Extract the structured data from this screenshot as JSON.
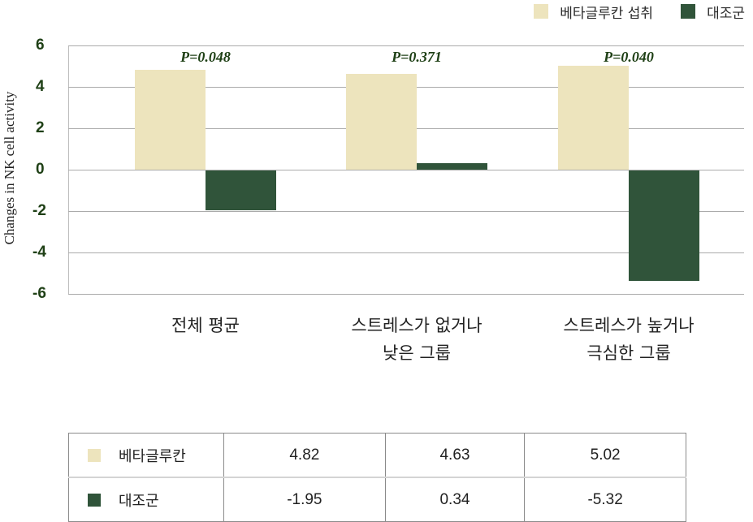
{
  "chart_data": {
    "type": "bar",
    "title": "",
    "ylabel": "Changes in NK cell activity",
    "xlabel": "",
    "ylim": [
      -6,
      6
    ],
    "yticks": [
      6,
      4,
      2,
      0,
      -2,
      -4,
      -6
    ],
    "grid": true,
    "legend_position": "top-right",
    "categories": [
      "전체 평균",
      "스트레스가 없거나 낮은 그룹",
      "스트레스가 높거나 극심한 그룹"
    ],
    "series": [
      {
        "name": "베타글루칸 섭취",
        "table_name": "베타글루칸",
        "color": "#ede4bd",
        "values": [
          4.82,
          4.63,
          5.02
        ]
      },
      {
        "name": "대조군",
        "table_name": "대조군",
        "color": "#30543a",
        "values": [
          -1.95,
          0.34,
          -5.32
        ]
      }
    ],
    "annotations": [
      "P=0.048",
      "P=0.371",
      "P=0.040"
    ]
  },
  "legend": {
    "items": [
      {
        "label": "베타글루칸 섭취",
        "color": "#ede4bd"
      },
      {
        "label": "대조군",
        "color": "#30543a"
      }
    ]
  },
  "axis": {
    "ylabel": "Changes in NK cell activity",
    "ticks": [
      "6",
      "4",
      "2",
      "0",
      "-2",
      "-4",
      "-6"
    ]
  },
  "pvalues": [
    "P=0.048",
    "P=0.371",
    "P=0.040"
  ],
  "categories": [
    {
      "line1": "전체 평균",
      "line2": ""
    },
    {
      "line1": "스트레스가 없거나",
      "line2": "낮은 그룹"
    },
    {
      "line1": "스트레스가 높거나",
      "line2": "극심한 그룹"
    }
  ],
  "table": {
    "rows": [
      {
        "label": "베타글루칸",
        "color": "#ede4bd",
        "values": [
          "4.82",
          "4.63",
          "5.02"
        ]
      },
      {
        "label": "대조군",
        "color": "#30543a",
        "values": [
          "-1.95",
          "0.34",
          "-5.32"
        ]
      }
    ]
  }
}
